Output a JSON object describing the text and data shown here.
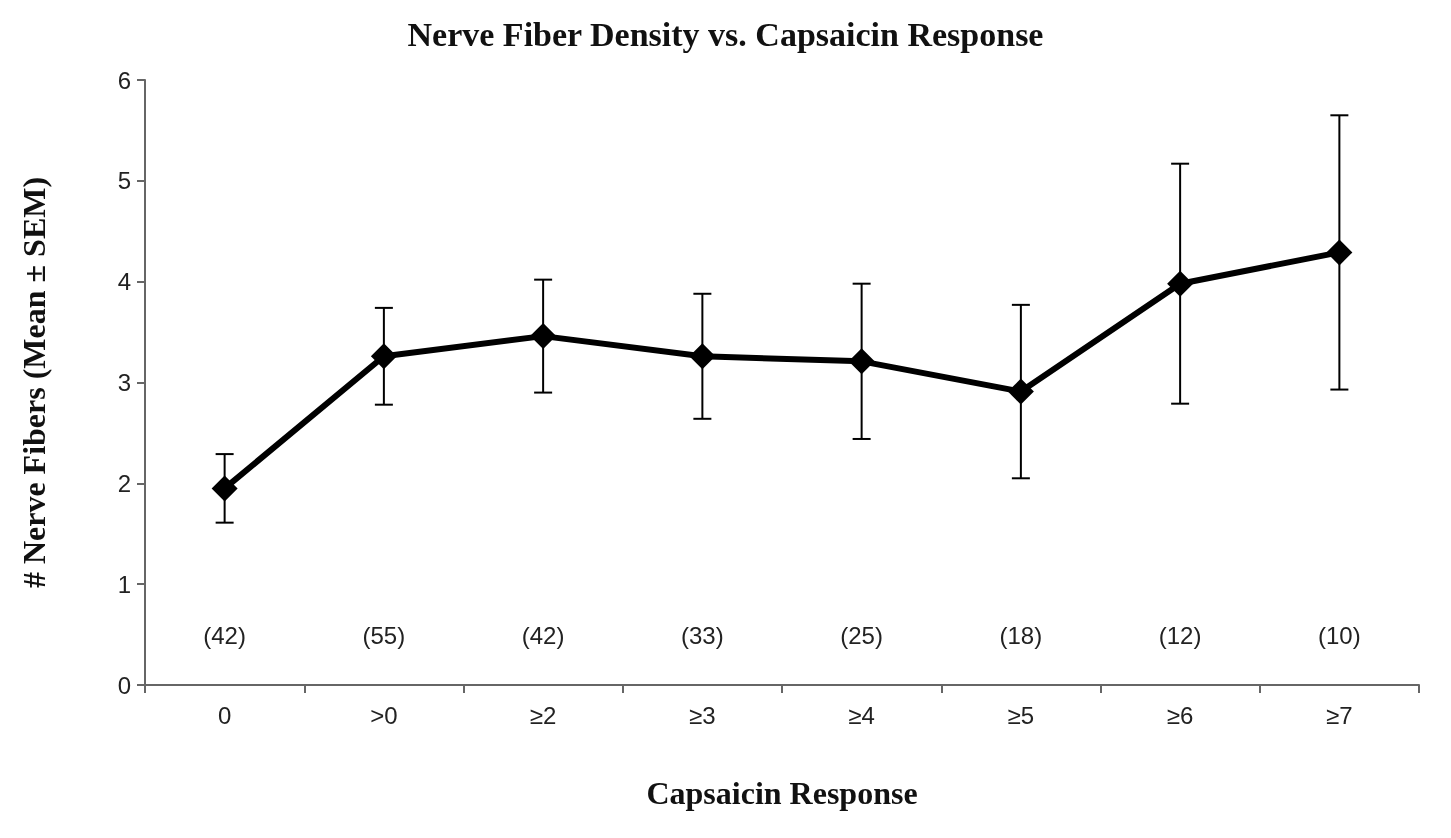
{
  "chart_data": {
    "type": "line",
    "title": "Nerve Fiber Density vs. Capsaicin Response",
    "xlabel": "Capsaicin Response",
    "ylabel": "# Nerve Fibers (Mean ± SEM)",
    "categories": [
      "0",
      ">0",
      "≥2",
      "≥3",
      "≥4",
      "≥5",
      "≥6",
      "≥7"
    ],
    "series": [
      {
        "color": "#000000",
        "values": [
          1.95,
          3.26,
          3.46,
          3.26,
          3.21,
          2.91,
          3.98,
          4.29
        ],
        "errors": [
          0.34,
          0.48,
          0.56,
          0.62,
          0.77,
          0.86,
          1.19,
          1.36
        ]
      }
    ],
    "ylim": [
      0,
      6
    ],
    "yticks": [
      0,
      1,
      2,
      3,
      4,
      5,
      6
    ],
    "grid": false,
    "marker": "diamond",
    "line_style": "solid",
    "annotations": [
      "(42)",
      "(55)",
      "(42)",
      "(33)",
      "(25)",
      "(18)",
      "(12)",
      "(10)"
    ]
  }
}
